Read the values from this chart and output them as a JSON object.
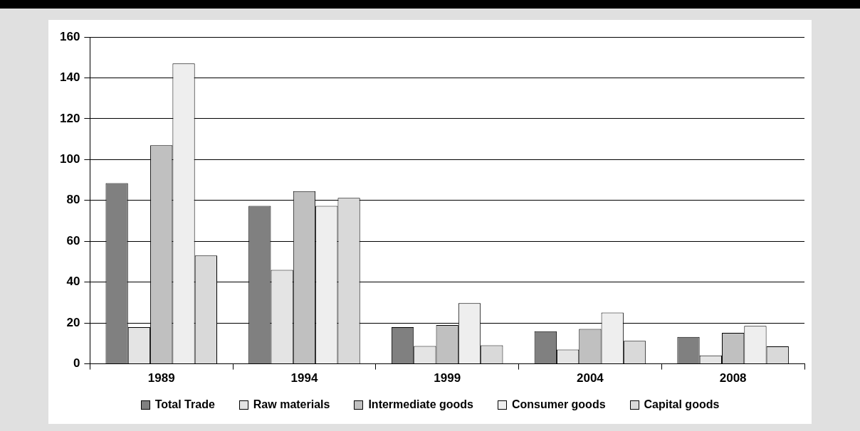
{
  "chart_data": {
    "type": "bar",
    "categories": [
      "1989",
      "1994",
      "1999",
      "2004",
      "2008"
    ],
    "series": [
      {
        "name": "Total Trade",
        "color": "#808080",
        "values": [
          88.5,
          77.3,
          18,
          16,
          13.2
        ]
      },
      {
        "name": "Raw materials",
        "color": "#e4e4e4",
        "values": [
          18,
          46,
          8.7,
          7,
          4.1
        ]
      },
      {
        "name": "Intermediate goods",
        "color": "#c0c0c0",
        "values": [
          107,
          84.5,
          19,
          17.1,
          15.2
        ]
      },
      {
        "name": "Consumer goods",
        "color": "#eeeeee",
        "values": [
          147,
          77.3,
          29.7,
          25.1,
          18.6
        ]
      },
      {
        "name": "Capital goods",
        "color": "#d9d9d9",
        "values": [
          53,
          81.2,
          9.1,
          11.3,
          8.6
        ]
      }
    ],
    "ylim": [
      0,
      160
    ],
    "yticks": [
      0,
      20,
      40,
      60,
      80,
      100,
      120,
      140,
      160
    ],
    "grid": "y",
    "legend": "bottom"
  }
}
